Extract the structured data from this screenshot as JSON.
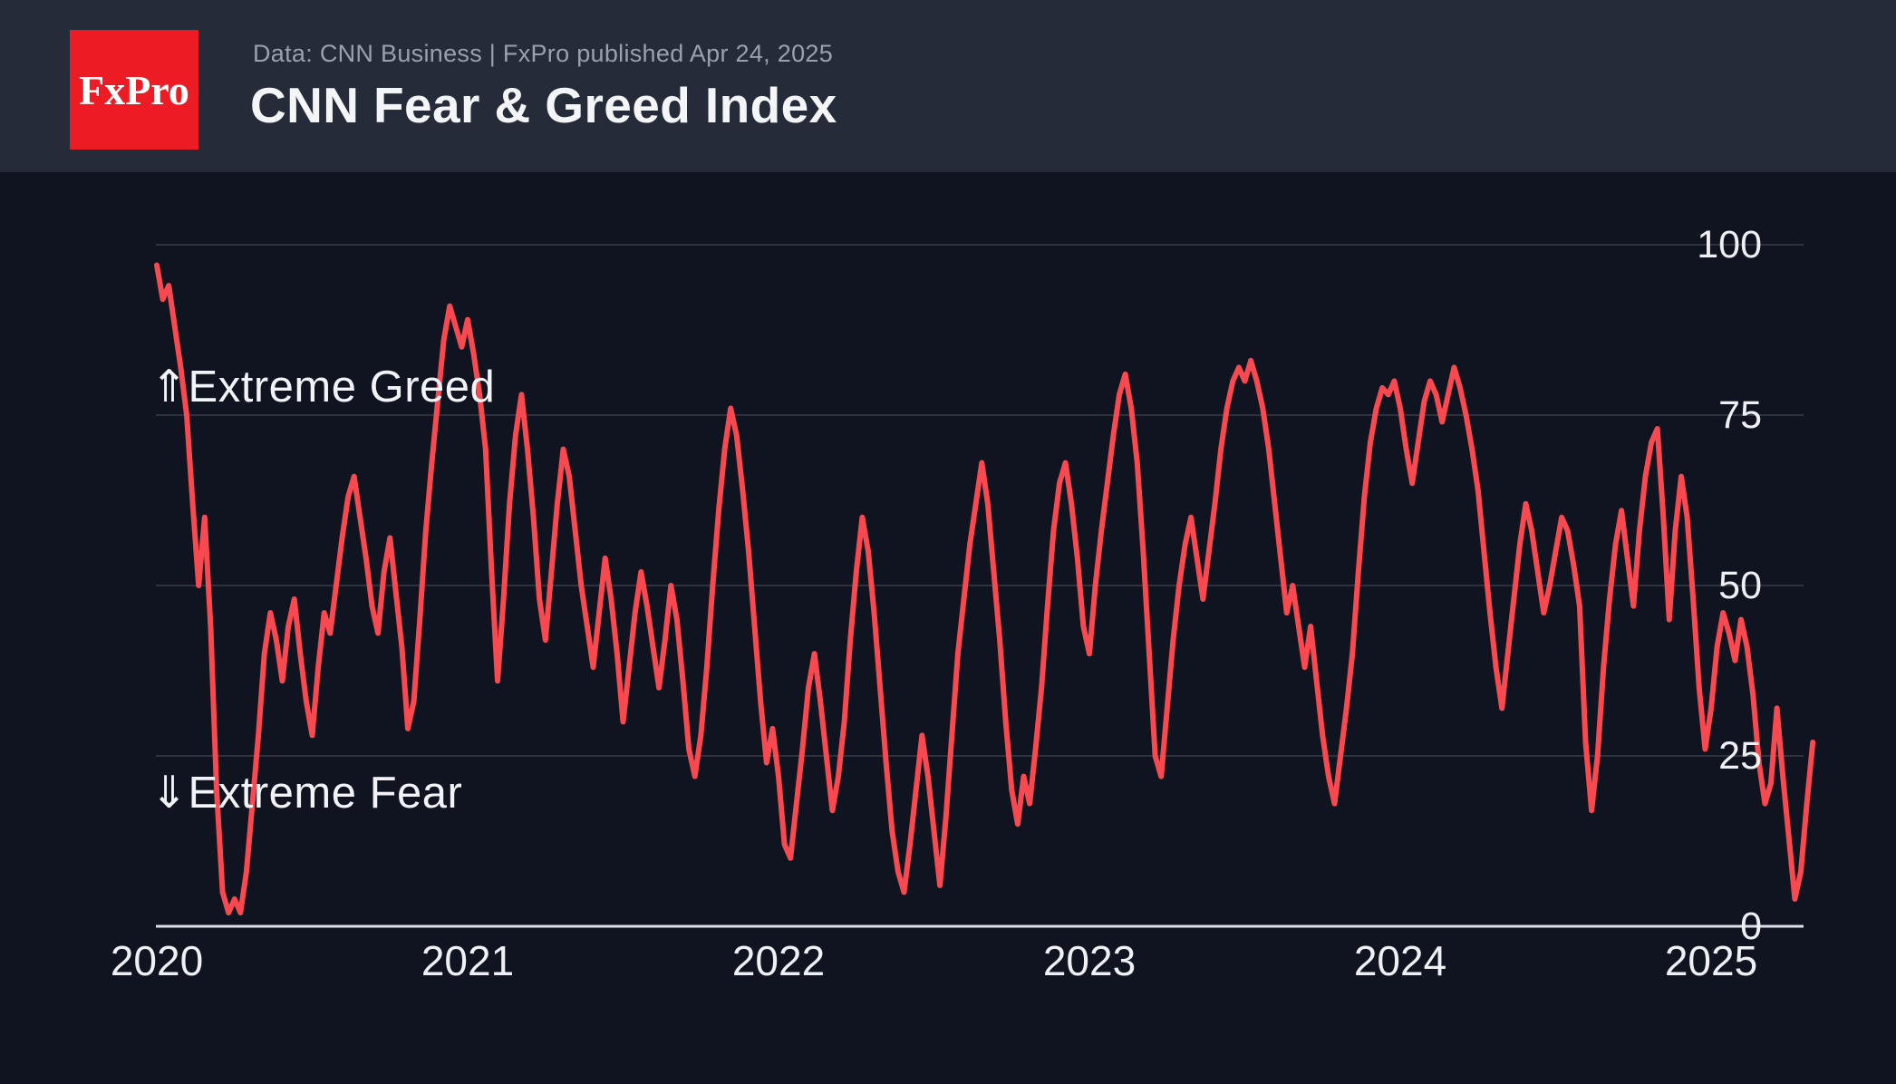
{
  "header": {
    "logo_text": "FxPro",
    "logo_bg": "#ed1c24",
    "source_line": "Data: CNN Business | FxPro published Apr 24, 2025",
    "title": "CNN Fear & Greed Index"
  },
  "colors": {
    "page_background": "#0f1420",
    "header_background": "#262b39",
    "line": "#f84950",
    "grid": "rgba(255,255,255,0.13)",
    "axis": "#dde1e7",
    "tick_text": "#eef0f3",
    "subtitle_text": "#9aa1ad",
    "title_text": "#f4f5f7"
  },
  "chart_data": {
    "type": "line",
    "title": "CNN Fear & Greed Index",
    "xlabel": "",
    "ylabel": "",
    "ylim": [
      0,
      100
    ],
    "xlim": [
      2020.0,
      2025.33
    ],
    "grid": "horizontal",
    "legend_position": "none",
    "yticks": [
      0,
      25,
      50,
      75,
      100
    ],
    "xticks": [
      2020,
      2021,
      2022,
      2023,
      2024,
      2025
    ],
    "annotations": [
      {
        "text": "⇑Extreme Greed",
        "anchor_value": 80,
        "position": "above-75-line"
      },
      {
        "text": "⇓Extreme Fear",
        "anchor_value": 20,
        "position": "below-25-line"
      }
    ],
    "series": [
      {
        "name": "CNN Fear & Greed Index",
        "color": "#f84950",
        "stroke_width": 6,
        "t0": 2020.0,
        "dt_years": 0.019231,
        "values": [
          97,
          92,
          94,
          88,
          82,
          75,
          62,
          50,
          60,
          44,
          20,
          5,
          2,
          4,
          2,
          8,
          18,
          28,
          40,
          46,
          42,
          36,
          44,
          48,
          40,
          33,
          28,
          38,
          46,
          43,
          50,
          57,
          63,
          66,
          60,
          54,
          47,
          43,
          52,
          57,
          49,
          41,
          29,
          33,
          45,
          58,
          68,
          77,
          86,
          91,
          88,
          85,
          89,
          84,
          78,
          70,
          52,
          36,
          48,
          62,
          72,
          78,
          70,
          60,
          48,
          42,
          52,
          62,
          70,
          66,
          58,
          50,
          44,
          38,
          46,
          54,
          48,
          40,
          30,
          38,
          46,
          52,
          47,
          41,
          35,
          42,
          50,
          45,
          36,
          26,
          22,
          28,
          38,
          50,
          61,
          70,
          76,
          72,
          64,
          55,
          44,
          33,
          24,
          29,
          22,
          12,
          10,
          18,
          26,
          35,
          40,
          33,
          25,
          17,
          22,
          30,
          42,
          52,
          60,
          55,
          46,
          35,
          24,
          14,
          8,
          5,
          12,
          20,
          28,
          22,
          14,
          6,
          16,
          28,
          40,
          48,
          56,
          62,
          68,
          62,
          52,
          42,
          30,
          20,
          15,
          22,
          18,
          26,
          35,
          47,
          58,
          65,
          68,
          62,
          54,
          44,
          40,
          50,
          58,
          65,
          72,
          78,
          81,
          76,
          68,
          55,
          40,
          25,
          22,
          32,
          42,
          50,
          56,
          60,
          54,
          48,
          55,
          62,
          70,
          76,
          80,
          82,
          80,
          83,
          80,
          76,
          70,
          62,
          54,
          46,
          50,
          44,
          38,
          44,
          36,
          28,
          22,
          18,
          25,
          32,
          40,
          52,
          63,
          71,
          76,
          79,
          78,
          80,
          76,
          70,
          65,
          71,
          77,
          80,
          78,
          74,
          78,
          82,
          79,
          75,
          70,
          64,
          55,
          46,
          38,
          32,
          40,
          48,
          56,
          62,
          58,
          52,
          46,
          50,
          55,
          60,
          58,
          53,
          47,
          27,
          17,
          25,
          38,
          48,
          56,
          61,
          54,
          47,
          58,
          66,
          71,
          73,
          60,
          45,
          58,
          66,
          60,
          48,
          35,
          26,
          32,
          41,
          46,
          43,
          39,
          45,
          41,
          34,
          24,
          18,
          21,
          32,
          22,
          13,
          4,
          8,
          18,
          27
        ]
      }
    ]
  }
}
